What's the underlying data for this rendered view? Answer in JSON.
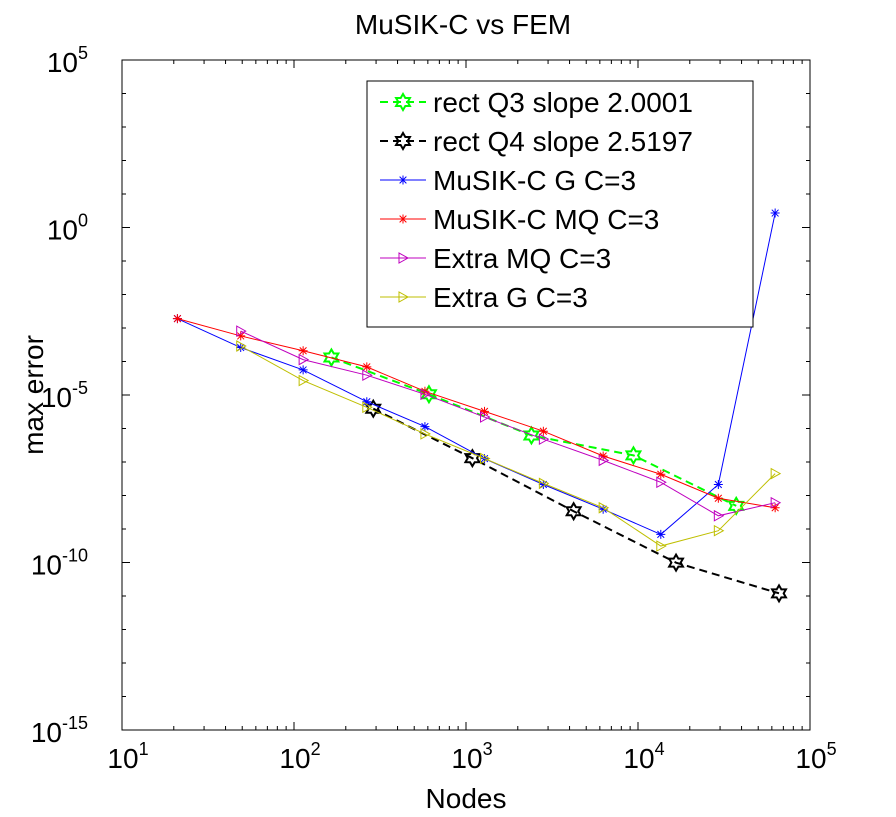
{
  "chart_data": {
    "type": "line",
    "title": "MuSIK-C vs FEM",
    "xlabel": "Nodes",
    "ylabel": "max error",
    "xscale": "log",
    "yscale": "log",
    "xlim": [
      10,
      100000
    ],
    "ylim": [
      1e-15,
      100000
    ],
    "xticks": [
      {
        "base": "10",
        "exp": "1",
        "value": 10
      },
      {
        "base": "10",
        "exp": "2",
        "value": 100
      },
      {
        "base": "10",
        "exp": "3",
        "value": 1000
      },
      {
        "base": "10",
        "exp": "4",
        "value": 10000
      },
      {
        "base": "10",
        "exp": "5",
        "value": 100000
      }
    ],
    "yticks": [
      {
        "base": "10",
        "exp": "5",
        "value": 100000
      },
      {
        "base": "10",
        "exp": "0",
        "value": 1
      },
      {
        "base": "10",
        "exp": "-5",
        "value": 1e-05
      },
      {
        "base": "10",
        "exp": "-10",
        "value": 1e-10
      },
      {
        "base": "10",
        "exp": "-15",
        "value": 1e-15
      }
    ],
    "legend_position": "top-right",
    "series": [
      {
        "name": "rect Q3 slope 2.0001",
        "color": "#00ff00",
        "dash": "dashed",
        "marker": "hexagram",
        "x": [
          165,
          609,
          2401,
          9409,
          37249
        ],
        "y": [
          0.000132,
          1.05e-05,
          6.2e-07,
          1.58e-07,
          4.9e-09
        ]
      },
      {
        "name": "rect Q4 slope 2.5197",
        "color": "#000000",
        "dash": "dashed",
        "marker": "hexagram",
        "x": [
          289,
          1089,
          4225,
          16641,
          66049
        ],
        "y": [
          3.9e-06,
          1.3e-07,
          3.4e-09,
          9.9e-11,
          1.2e-11
        ]
      },
      {
        "name": "MuSIK-C G C=3",
        "color": "#0000ff",
        "dash": "solid",
        "marker": "asterisk",
        "x": [
          21,
          49,
          113,
          265,
          577,
          1281,
          2817,
          6273,
          13569,
          29313,
          62721
        ],
        "y": [
          0.0019,
          0.000261,
          5.6e-05,
          6.3e-06,
          1.14e-06,
          1.26e-07,
          2.13e-08,
          3.9e-09,
          6.9e-10,
          2.13e-08,
          2.7
        ]
      },
      {
        "name": "MuSIK-C MQ C=3",
        "color": "#ff0000",
        "dash": "solid",
        "marker": "asterisk",
        "x": [
          21,
          49,
          113,
          265,
          577,
          1281,
          2817,
          6273,
          13569,
          29313,
          62721
        ],
        "y": [
          0.0019,
          0.00058,
          0.000209,
          6.9e-05,
          1.29e-05,
          3.25e-06,
          8.3e-07,
          1.51e-07,
          4.3e-08,
          8.3e-09,
          4.3e-09
        ]
      },
      {
        "name": "Extra MQ C=3",
        "color": "#bf00bf",
        "dash": "solid",
        "marker": "triangle-right",
        "x": [
          49,
          113,
          265,
          577,
          1281,
          2817,
          6273,
          13569,
          29313,
          62721
        ],
        "y": [
          0.00081,
          0.000114,
          3.9e-05,
          1.05e-05,
          2.2e-06,
          4.8e-07,
          1.12e-07,
          2.48e-08,
          2.48e-09,
          6.1e-09
        ]
      },
      {
        "name": "Extra G C=3",
        "color": "#bfbf00",
        "dash": "solid",
        "marker": "triangle-right",
        "x": [
          49,
          113,
          265,
          577,
          1281,
          2817,
          6273,
          13569,
          29313,
          62721
        ],
        "y": [
          0.00029,
          2.7e-05,
          4.3e-06,
          6.9e-07,
          1.27e-07,
          2.3e-08,
          4.3e-09,
          3.1e-10,
          8.9e-10,
          4.5e-08
        ]
      }
    ]
  }
}
